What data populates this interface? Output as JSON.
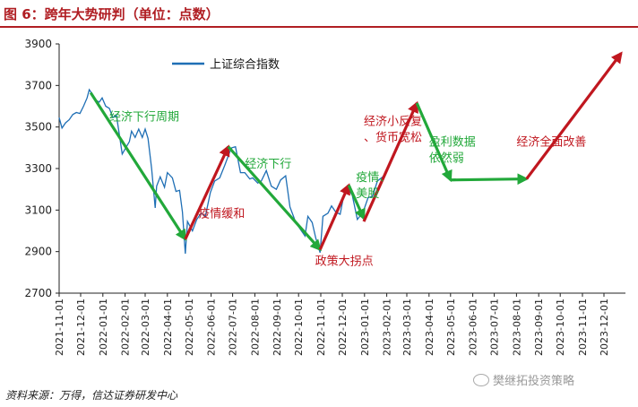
{
  "header": {
    "title": "图 6：跨年大势研判（单位：点数）"
  },
  "footer": {
    "source": "资料来源：万得，信达证券研发中心",
    "watermark": "樊继拓投资策略"
  },
  "colors": {
    "title": "#b01e23",
    "series": "#1f6fb5",
    "green": "#22a83a",
    "red": "#c0171f"
  },
  "chart_data": {
    "type": "line",
    "ylim": [
      2700,
      3900
    ],
    "yticks": [
      "2700",
      "2900",
      "3100",
      "3300",
      "3500",
      "3700",
      "3900"
    ],
    "xticks": [
      "2021-11-01",
      "2021-12-01",
      "2022-01-01",
      "2022-02-01",
      "2022-03-01",
      "2022-04-01",
      "2022-05-01",
      "2022-06-01",
      "2022-07-01",
      "2022-08-01",
      "2022-09-01",
      "2022-10-01",
      "2022-11-01",
      "2022-12-01",
      "2023-01-01",
      "2023-02-01",
      "2023-03-01",
      "2023-04-01",
      "2023-05-01",
      "2023-06-01",
      "2023-07-01",
      "2023-08-01",
      "2023-09-01",
      "2023-10-01",
      "2023-11-01",
      "2023-12-01"
    ],
    "series": [
      {
        "name": "上证综合指数",
        "color": "#1f6fb5",
        "points": [
          [
            "2021-11-01",
            3545
          ],
          [
            "2021-11-05",
            3495
          ],
          [
            "2021-11-10",
            3520
          ],
          [
            "2021-11-15",
            3535
          ],
          [
            "2021-11-20",
            3560
          ],
          [
            "2021-11-25",
            3570
          ],
          [
            "2021-11-30",
            3565
          ],
          [
            "2021-12-05",
            3600
          ],
          [
            "2021-12-10",
            3640
          ],
          [
            "2021-12-13",
            3680
          ],
          [
            "2021-12-17",
            3660
          ],
          [
            "2021-12-22",
            3630
          ],
          [
            "2021-12-27",
            3620
          ],
          [
            "2021-12-31",
            3640
          ],
          [
            "2022-01-05",
            3600
          ],
          [
            "2022-01-10",
            3590
          ],
          [
            "2022-01-15",
            3545
          ],
          [
            "2022-01-20",
            3555
          ],
          [
            "2022-01-25",
            3440
          ],
          [
            "2022-01-28",
            3370
          ],
          [
            "2022-02-07",
            3430
          ],
          [
            "2022-02-10",
            3480
          ],
          [
            "2022-02-15",
            3450
          ],
          [
            "2022-02-20",
            3490
          ],
          [
            "2022-02-25",
            3450
          ],
          [
            "2022-03-01",
            3490
          ],
          [
            "2022-03-05",
            3445
          ],
          [
            "2022-03-10",
            3300
          ],
          [
            "2022-03-15",
            3110
          ],
          [
            "2022-03-17",
            3215
          ],
          [
            "2022-03-22",
            3260
          ],
          [
            "2022-03-28",
            3210
          ],
          [
            "2022-04-01",
            3280
          ],
          [
            "2022-04-08",
            3255
          ],
          [
            "2022-04-13",
            3190
          ],
          [
            "2022-04-18",
            3195
          ],
          [
            "2022-04-22",
            3090
          ],
          [
            "2022-04-26",
            2890
          ],
          [
            "2022-04-29",
            3045
          ],
          [
            "2022-05-06",
            3000
          ],
          [
            "2022-05-12",
            3055
          ],
          [
            "2022-05-18",
            3085
          ],
          [
            "2022-05-24",
            3070
          ],
          [
            "2022-05-31",
            3185
          ],
          [
            "2022-06-06",
            3240
          ],
          [
            "2022-06-13",
            3255
          ],
          [
            "2022-06-20",
            3315
          ],
          [
            "2022-06-27",
            3380
          ],
          [
            "2022-06-30",
            3400
          ],
          [
            "2022-07-05",
            3405
          ],
          [
            "2022-07-12",
            3280
          ],
          [
            "2022-07-18",
            3280
          ],
          [
            "2022-07-25",
            3250
          ],
          [
            "2022-07-29",
            3255
          ],
          [
            "2022-08-05",
            3230
          ],
          [
            "2022-08-10",
            3240
          ],
          [
            "2022-08-17",
            3290
          ],
          [
            "2022-08-24",
            3215
          ],
          [
            "2022-08-31",
            3200
          ],
          [
            "2022-09-06",
            3245
          ],
          [
            "2022-09-13",
            3265
          ],
          [
            "2022-09-19",
            3115
          ],
          [
            "2022-09-26",
            3050
          ],
          [
            "2022-09-30",
            3025
          ],
          [
            "2022-10-10",
            2975
          ],
          [
            "2022-10-14",
            3070
          ],
          [
            "2022-10-20",
            3040
          ],
          [
            "2022-10-25",
            2965
          ],
          [
            "2022-10-31",
            2895
          ],
          [
            "2022-11-04",
            3070
          ],
          [
            "2022-11-11",
            3085
          ],
          [
            "2022-11-16",
            3120
          ],
          [
            "2022-11-22",
            3090
          ],
          [
            "2022-11-28",
            3080
          ],
          [
            "2022-12-05",
            3205
          ],
          [
            "2022-12-09",
            3205
          ],
          [
            "2022-12-15",
            3170
          ],
          [
            "2022-12-22",
            3055
          ],
          [
            "2022-12-30",
            3090
          ],
          [
            "2023-01-06",
            3160
          ],
          [
            "2023-01-12",
            3165
          ],
          [
            "2023-01-19",
            3240
          ],
          [
            "2023-01-30",
            3270
          ]
        ]
      }
    ],
    "arrows": [
      {
        "color": "green",
        "from": [
          "2021-12-15",
          3665
        ],
        "to": [
          "2022-04-26",
          2960
        ]
      },
      {
        "color": "red",
        "from": [
          "2022-04-26",
          2960
        ],
        "to": [
          "2022-06-25",
          3405
        ]
      },
      {
        "color": "green",
        "from": [
          "2022-06-25",
          3405
        ],
        "to": [
          "2022-10-31",
          2910
        ]
      },
      {
        "color": "red",
        "from": [
          "2022-10-31",
          2910
        ],
        "to": [
          "2022-12-10",
          3220
        ]
      },
      {
        "color": "green",
        "from": [
          "2022-12-10",
          3220
        ],
        "to": [
          "2022-12-31",
          3060
        ]
      },
      {
        "color": "red",
        "from": [
          "2022-12-31",
          3045
        ],
        "to": [
          "2023-03-15",
          3615
        ]
      },
      {
        "color": "green",
        "from": [
          "2023-03-15",
          3615
        ],
        "to": [
          "2023-05-01",
          3245
        ]
      },
      {
        "color": "green",
        "from": [
          "2023-05-01",
          3245
        ],
        "to": [
          "2023-08-15",
          3250
        ]
      },
      {
        "color": "red",
        "from": [
          "2023-08-15",
          3250
        ],
        "to": [
          "2023-12-25",
          3855
        ]
      }
    ],
    "annotations": [
      {
        "color": "green",
        "lines": [
          "经济下行周期"
        ],
        "at": [
          "2022-01-10",
          3530
        ]
      },
      {
        "color": "red",
        "lines": [
          "疫情缓和"
        ],
        "at": [
          "2022-05-14",
          3065
        ]
      },
      {
        "color": "green",
        "lines": [
          "经济下行"
        ],
        "at": [
          "2022-07-18",
          3305
        ]
      },
      {
        "color": "red",
        "lines": [
          "政策大拐点"
        ],
        "at": [
          "2022-10-24",
          2835
        ]
      },
      {
        "color": "green",
        "lines": [
          "疫情、",
          "美股"
        ],
        "at": [
          "2022-12-20",
          3240
        ]
      },
      {
        "color": "red",
        "lines": [
          "经济小反复",
          "、货币宽松"
        ],
        "at": [
          "2022-12-31",
          3510
        ]
      },
      {
        "color": "green",
        "lines": [
          "盈利数据",
          "依然弱"
        ],
        "at": [
          "2023-04-01",
          3410
        ]
      },
      {
        "color": "red",
        "lines": [
          "经济全面改善"
        ],
        "at": [
          "2023-08-01",
          3410
        ]
      }
    ]
  }
}
